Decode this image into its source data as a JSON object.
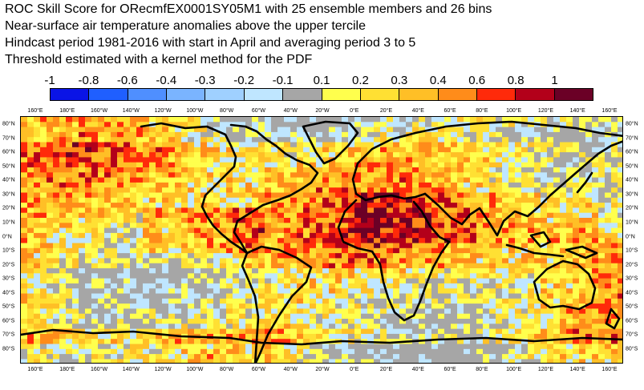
{
  "titles": [
    "ROC Skill Score for ORecmfEX0001SY05M1 with 25 ensemble members and 26 bins",
    "Near-surface air temperature anomalies above the upper tercile",
    "Hindcast period 1981-2016 with start in April and averaging period  3 to  5",
    "Threshold estimated with a kernel method for the PDF"
  ],
  "colorbar": {
    "labels": [
      "-1",
      "-0.8",
      "-0.6",
      "-0.4",
      "-0.3",
      "-0.2",
      "-0.1",
      "0.1",
      "0.2",
      "0.3",
      "0.4",
      "0.6",
      "0.8",
      "1"
    ],
    "colors": [
      "#0a14e6",
      "#1f5fff",
      "#4f8fff",
      "#7ab4ff",
      "#9fd0ff",
      "#bfe6ff",
      "#a6a6a6",
      "#ffff4d",
      "#ffe033",
      "#ffbf26",
      "#ff8c1a",
      "#ff2a0a",
      "#b3001a",
      "#6b0026"
    ]
  },
  "axes": {
    "lon_labels": [
      "160°E",
      "180°E",
      "160°W",
      "140°W",
      "120°W",
      "100°W",
      "80°W",
      "60°W",
      "40°W",
      "20°W",
      "0°E",
      "20°E",
      "40°E",
      "60°E",
      "80°E",
      "100°E",
      "120°E",
      "140°E",
      "160°E"
    ],
    "lat_labels": [
      "80°N",
      "70°N",
      "60°N",
      "50°N",
      "40°N",
      "30°N",
      "20°N",
      "10°N",
      "0°N",
      "10°S",
      "20°S",
      "30°S",
      "40°S",
      "50°S",
      "60°S",
      "70°S",
      "80°S"
    ]
  },
  "map": {
    "type": "heatmap",
    "lon_range": [
      150,
      510
    ],
    "lat_range": [
      -85,
      85
    ]
  }
}
